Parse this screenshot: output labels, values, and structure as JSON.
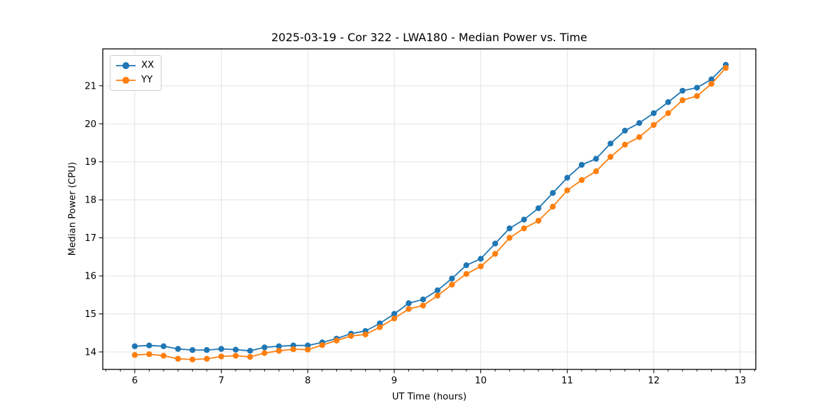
{
  "title": "2025-03-19 - Cor 322 - LWA180 - Median Power vs. Time",
  "colors": {
    "background": "#ffffff",
    "grid": "#e3e3e3",
    "spine": "#000000",
    "text": "#000000",
    "series_xx": "#1f77b4",
    "series_yy": "#ff7f0e"
  },
  "chart_data": {
    "type": "line",
    "title": "2025-03-19 - Cor 322 - LWA180 - Median Power vs. Time",
    "xlabel": "UT Time (hours)",
    "ylabel": "Median Power (CPU)",
    "xlim": [
      5.63,
      13.18
    ],
    "ylim": [
      13.54,
      21.97
    ],
    "x_ticks": [
      6,
      7,
      8,
      9,
      10,
      11,
      12,
      13
    ],
    "y_ticks": [
      14,
      15,
      16,
      17,
      18,
      19,
      20,
      21
    ],
    "x_minor_step": 0.16667,
    "grid": true,
    "legend_position": "upper-left",
    "marker": "circle",
    "x": [
      6.0,
      6.167,
      6.333,
      6.5,
      6.667,
      6.833,
      7.0,
      7.167,
      7.333,
      7.5,
      7.667,
      7.833,
      8.0,
      8.167,
      8.333,
      8.5,
      8.667,
      8.833,
      9.0,
      9.167,
      9.333,
      9.5,
      9.667,
      9.833,
      10.0,
      10.167,
      10.333,
      10.5,
      10.667,
      10.833,
      11.0,
      11.167,
      11.333,
      11.5,
      11.667,
      11.833,
      12.0,
      12.167,
      12.333,
      12.5,
      12.667,
      12.833
    ],
    "series": [
      {
        "name": "XX",
        "color": "#1f77b4",
        "values": [
          14.15,
          14.17,
          14.15,
          14.08,
          14.05,
          14.05,
          14.08,
          14.06,
          14.03,
          14.12,
          14.15,
          14.17,
          14.17,
          14.25,
          14.35,
          14.48,
          14.55,
          14.75,
          15.0,
          15.28,
          15.38,
          15.62,
          15.93,
          16.28,
          16.45,
          16.85,
          17.25,
          17.48,
          17.78,
          18.18,
          18.58,
          18.92,
          19.08,
          19.48,
          19.82,
          20.02,
          20.28,
          20.57,
          20.87,
          20.95,
          21.17,
          21.55
        ]
      },
      {
        "name": "YY",
        "color": "#ff7f0e",
        "values": [
          13.92,
          13.94,
          13.9,
          13.82,
          13.8,
          13.82,
          13.88,
          13.9,
          13.87,
          13.97,
          14.03,
          14.07,
          14.06,
          14.18,
          14.3,
          14.42,
          14.46,
          14.65,
          14.88,
          15.13,
          15.22,
          15.48,
          15.77,
          16.05,
          16.25,
          16.58,
          17.0,
          17.25,
          17.45,
          17.82,
          18.25,
          18.52,
          18.75,
          19.13,
          19.45,
          19.65,
          19.97,
          20.28,
          20.62,
          20.73,
          21.05,
          21.47
        ]
      }
    ]
  }
}
